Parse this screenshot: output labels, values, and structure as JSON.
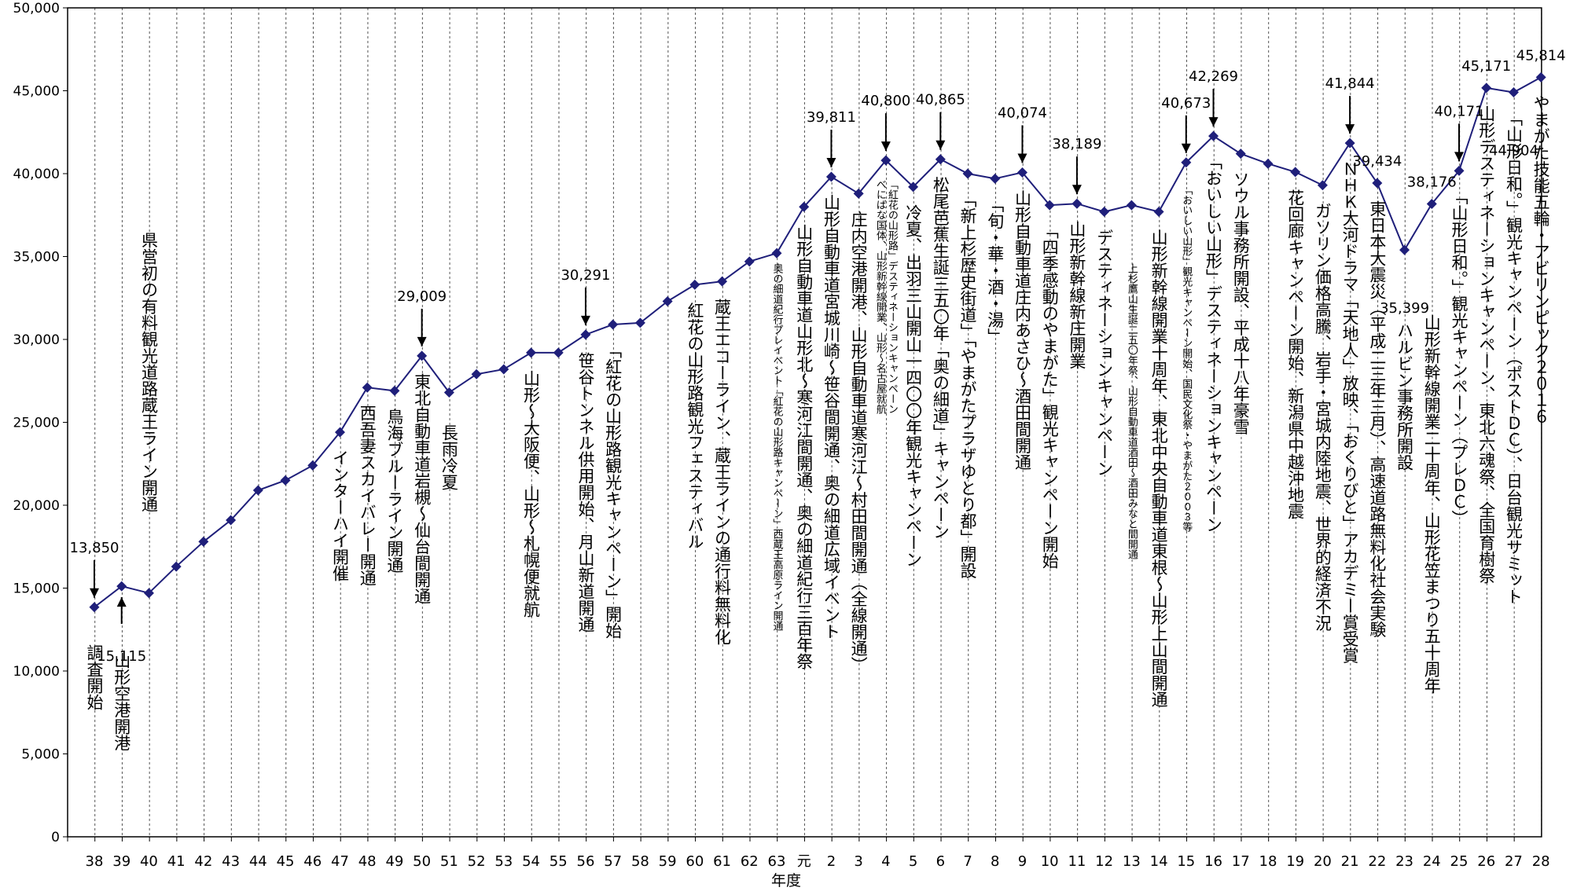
{
  "chart_data": {
    "type": "line",
    "xlabel": "年度",
    "ylim": [
      0,
      50000
    ],
    "yticks": [
      "0",
      "5,000",
      "10,000",
      "15,000",
      "20,000",
      "25,000",
      "30,000",
      "35,000",
      "40,000",
      "45,000",
      "50,000"
    ],
    "grid": "vertical-dotted",
    "line_color": "#1f1f7a",
    "categories": [
      "38",
      "39",
      "40",
      "41",
      "42",
      "43",
      "44",
      "45",
      "46",
      "47",
      "48",
      "49",
      "50",
      "51",
      "52",
      "53",
      "54",
      "55",
      "56",
      "57",
      "58",
      "59",
      "60",
      "61",
      "62",
      "63",
      "元",
      "2",
      "3",
      "4",
      "5",
      "6",
      "7",
      "8",
      "9",
      "10",
      "11",
      "12",
      "13",
      "14",
      "15",
      "16",
      "17",
      "18",
      "19",
      "20",
      "21",
      "22",
      "23",
      "24",
      "25",
      "26",
      "27",
      "28"
    ],
    "values": [
      13850,
      15115,
      14700,
      16300,
      17800,
      19100,
      20900,
      21500,
      22400,
      24400,
      27100,
      26900,
      29009,
      26800,
      27900,
      28200,
      29200,
      29200,
      30291,
      30900,
      31000,
      32300,
      33300,
      33500,
      34700,
      35200,
      38000,
      39811,
      38800,
      40800,
      39200,
      40865,
      40000,
      39700,
      40074,
      38100,
      38189,
      37700,
      38100,
      37700,
      40673,
      42269,
      41200,
      40600,
      40100,
      39300,
      41844,
      39434,
      35399,
      38176,
      40171,
      45171,
      44904,
      45814
    ],
    "data_labels": [
      {
        "i": 0,
        "text": "13,850"
      },
      {
        "i": 1,
        "text": "15,115"
      },
      {
        "i": 12,
        "text": "29,009"
      },
      {
        "i": 18,
        "text": "30,291"
      },
      {
        "i": 27,
        "text": "39,811"
      },
      {
        "i": 29,
        "text": "40,800"
      },
      {
        "i": 31,
        "text": "40,865"
      },
      {
        "i": 34,
        "text": "40,074"
      },
      {
        "i": 36,
        "text": "38,189"
      },
      {
        "i": 40,
        "text": "40,673"
      },
      {
        "i": 41,
        "text": "42,269"
      },
      {
        "i": 46,
        "text": "41,844"
      },
      {
        "i": 47,
        "text": "39,434"
      },
      {
        "i": 48,
        "text": "35,399"
      },
      {
        "i": 49,
        "text": "38,176"
      },
      {
        "i": 50,
        "text": "40,171"
      },
      {
        "i": 51,
        "text": "45,171"
      },
      {
        "i": 52,
        "text": "44,904"
      },
      {
        "i": 53,
        "text": "45,814"
      }
    ],
    "arrows": [
      0,
      1,
      12,
      18,
      27,
      29,
      31,
      34,
      36,
      40,
      41,
      46,
      50
    ],
    "annotations": [
      {
        "i": 0,
        "lines": [
          "調査開始"
        ]
      },
      {
        "i": 1,
        "lines": [
          "山形空港開港"
        ]
      },
      {
        "i": 2,
        "lines": [
          "県営初の有料観光道路蔵王ライン開通"
        ]
      },
      {
        "i": 9,
        "lines": [
          "インターハイ開催"
        ]
      },
      {
        "i": 10,
        "lines": [
          "西吾妻スカイバレー開通"
        ]
      },
      {
        "i": 11,
        "lines": [
          "鳥海ブルーライン開通"
        ]
      },
      {
        "i": 12,
        "lines": [
          "東北自動車道岩槻～仙台間開通"
        ]
      },
      {
        "i": 13,
        "lines": [
          "長雨冷夏"
        ]
      },
      {
        "i": 16,
        "lines": [
          "山形～大阪便、山形～札幌便就航"
        ]
      },
      {
        "i": 18,
        "lines": [
          "笹谷トンネル供用開始、月山新道開通"
        ]
      },
      {
        "i": 19,
        "lines": [
          "「紅花の山形路観光キャンペーン」開始"
        ]
      },
      {
        "i": 22,
        "lines": [
          "紅花の山形路観光フェスティバル"
        ]
      },
      {
        "i": 23,
        "lines": [
          "蔵王エコーライン、蔵王ラインの通行料無料化"
        ]
      },
      {
        "i": 25,
        "lines": [
          "奥の細道紀行プレイベント「紅花の山形路キャンペーン」西蔵王高原ライン開通"
        ],
        "small": true
      },
      {
        "i": 26,
        "lines": [
          "山形自動車道山形北～寒河江間開通、奥の細道紀行三百年祭"
        ]
      },
      {
        "i": 27,
        "lines": [
          "山形自動車道宮城川崎～笹谷間開通、奥の細道広域イベント"
        ]
      },
      {
        "i": 28,
        "lines": [
          "庄内空港開港、山形自動車道寒河江～村田間開通（全線開通）"
        ]
      },
      {
        "i": 29,
        "lines": [
          "べにばな国体、山形新幹線開業、山形～名古屋就航",
          "「紅花の山形路」デスティネーションキャンペーン"
        ],
        "small": true
      },
      {
        "i": 30,
        "lines": [
          "冷夏、出羽三山開山一四〇〇年観光キャンペーン"
        ]
      },
      {
        "i": 31,
        "lines": [
          "松尾芭蕉生誕三五〇年「奥の細道」キャンペーン"
        ]
      },
      {
        "i": 32,
        "lines": [
          "「新上杉歴史街道」「やまがたプラザゆとり都」開設"
        ]
      },
      {
        "i": 33,
        "lines": [
          "「旬・華・酒・湯」"
        ]
      },
      {
        "i": 34,
        "lines": [
          "山形自動車道庄内あさひ～酒田間開通"
        ]
      },
      {
        "i": 35,
        "lines": [
          "「四季感動のやまがた」観光キャンペーン開始"
        ]
      },
      {
        "i": 36,
        "lines": [
          "山形新幹線新庄開業"
        ]
      },
      {
        "i": 37,
        "lines": [
          "デスティネーションキャンペーン"
        ]
      },
      {
        "i": 38,
        "lines": [
          "上杉鷹山生誕二五〇年祭、山形自動車道酒田～酒田みなと間開通"
        ],
        "small": true
      },
      {
        "i": 39,
        "lines": [
          "山形新幹線開業十周年、東北中央自動車道東根～山形上山間開通"
        ]
      },
      {
        "i": 40,
        "lines": [
          "「おいしい山形」観光キャンペーン開始、国民文化祭・やまがた２００３等"
        ],
        "small": true
      },
      {
        "i": 41,
        "lines": [
          "「おいしい山形」デスティネーションキャンペーン"
        ]
      },
      {
        "i": 42,
        "lines": [
          "ソウル事務所開設、平成十八年豪雪"
        ]
      },
      {
        "i": 44,
        "lines": [
          "花回廊キャンペーン開始、新潟県中越沖地震"
        ]
      },
      {
        "i": 45,
        "lines": [
          "ガソリン価格高騰、岩手・宮城内陸地震、世界的経済不況"
        ]
      },
      {
        "i": 46,
        "lines": [
          "ＮＨＫ大河ドラマ「天地人」放映、「おくりびと」アカデミー賞受賞"
        ]
      },
      {
        "i": 47,
        "lines": [
          "東日本大震災（平成二三年三月）、高速道路無料化社会実験"
        ]
      },
      {
        "i": 48,
        "lines": [
          "ハルビン事務所開設"
        ]
      },
      {
        "i": 49,
        "lines": [
          "山形新幹線開業二十周年、山形花笠まつり五十周年"
        ]
      },
      {
        "i": 50,
        "lines": [
          "「山形日和。」観光キャンペーン（プレＤＣ）"
        ]
      },
      {
        "i": 51,
        "lines": [
          "山形デスティネーションキャンペーン、東北六魂祭、全国育樹祭"
        ]
      },
      {
        "i": 52,
        "lines": [
          "「山形日和。」観光キャンペーン（ポストＤＣ）、日台観光サミット"
        ]
      },
      {
        "i": 53,
        "lines": [
          "やまがた技能五輪・アビリンピック２０１６"
        ]
      }
    ]
  }
}
